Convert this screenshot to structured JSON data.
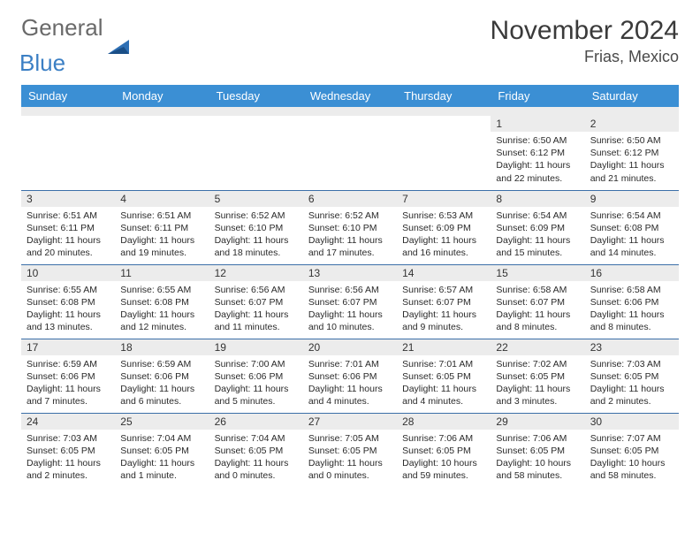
{
  "brand": {
    "text1": "General",
    "text2": "Blue"
  },
  "title": "November 2024",
  "subtitle": "Frias, Mexico",
  "colors": {
    "header_bg": "#3b8fd4",
    "header_text": "#ffffff",
    "row_border": "#3b6fa8",
    "daynum_bg": "#ececec",
    "text": "#2a2a2a",
    "brand_gray": "#6a6a6a",
    "brand_blue": "#3b7fc4"
  },
  "day_headers": [
    "Sunday",
    "Monday",
    "Tuesday",
    "Wednesday",
    "Thursday",
    "Friday",
    "Saturday"
  ],
  "weeks": [
    [
      null,
      null,
      null,
      null,
      null,
      {
        "n": "1",
        "sr": "6:50 AM",
        "ss": "6:12 PM",
        "dl": "11 hours and 22 minutes."
      },
      {
        "n": "2",
        "sr": "6:50 AM",
        "ss": "6:12 PM",
        "dl": "11 hours and 21 minutes."
      }
    ],
    [
      {
        "n": "3",
        "sr": "6:51 AM",
        "ss": "6:11 PM",
        "dl": "11 hours and 20 minutes."
      },
      {
        "n": "4",
        "sr": "6:51 AM",
        "ss": "6:11 PM",
        "dl": "11 hours and 19 minutes."
      },
      {
        "n": "5",
        "sr": "6:52 AM",
        "ss": "6:10 PM",
        "dl": "11 hours and 18 minutes."
      },
      {
        "n": "6",
        "sr": "6:52 AM",
        "ss": "6:10 PM",
        "dl": "11 hours and 17 minutes."
      },
      {
        "n": "7",
        "sr": "6:53 AM",
        "ss": "6:09 PM",
        "dl": "11 hours and 16 minutes."
      },
      {
        "n": "8",
        "sr": "6:54 AM",
        "ss": "6:09 PM",
        "dl": "11 hours and 15 minutes."
      },
      {
        "n": "9",
        "sr": "6:54 AM",
        "ss": "6:08 PM",
        "dl": "11 hours and 14 minutes."
      }
    ],
    [
      {
        "n": "10",
        "sr": "6:55 AM",
        "ss": "6:08 PM",
        "dl": "11 hours and 13 minutes."
      },
      {
        "n": "11",
        "sr": "6:55 AM",
        "ss": "6:08 PM",
        "dl": "11 hours and 12 minutes."
      },
      {
        "n": "12",
        "sr": "6:56 AM",
        "ss": "6:07 PM",
        "dl": "11 hours and 11 minutes."
      },
      {
        "n": "13",
        "sr": "6:56 AM",
        "ss": "6:07 PM",
        "dl": "11 hours and 10 minutes."
      },
      {
        "n": "14",
        "sr": "6:57 AM",
        "ss": "6:07 PM",
        "dl": "11 hours and 9 minutes."
      },
      {
        "n": "15",
        "sr": "6:58 AM",
        "ss": "6:07 PM",
        "dl": "11 hours and 8 minutes."
      },
      {
        "n": "16",
        "sr": "6:58 AM",
        "ss": "6:06 PM",
        "dl": "11 hours and 8 minutes."
      }
    ],
    [
      {
        "n": "17",
        "sr": "6:59 AM",
        "ss": "6:06 PM",
        "dl": "11 hours and 7 minutes."
      },
      {
        "n": "18",
        "sr": "6:59 AM",
        "ss": "6:06 PM",
        "dl": "11 hours and 6 minutes."
      },
      {
        "n": "19",
        "sr": "7:00 AM",
        "ss": "6:06 PM",
        "dl": "11 hours and 5 minutes."
      },
      {
        "n": "20",
        "sr": "7:01 AM",
        "ss": "6:06 PM",
        "dl": "11 hours and 4 minutes."
      },
      {
        "n": "21",
        "sr": "7:01 AM",
        "ss": "6:05 PM",
        "dl": "11 hours and 4 minutes."
      },
      {
        "n": "22",
        "sr": "7:02 AM",
        "ss": "6:05 PM",
        "dl": "11 hours and 3 minutes."
      },
      {
        "n": "23",
        "sr": "7:03 AM",
        "ss": "6:05 PM",
        "dl": "11 hours and 2 minutes."
      }
    ],
    [
      {
        "n": "24",
        "sr": "7:03 AM",
        "ss": "6:05 PM",
        "dl": "11 hours and 2 minutes."
      },
      {
        "n": "25",
        "sr": "7:04 AM",
        "ss": "6:05 PM",
        "dl": "11 hours and 1 minute."
      },
      {
        "n": "26",
        "sr": "7:04 AM",
        "ss": "6:05 PM",
        "dl": "11 hours and 0 minutes."
      },
      {
        "n": "27",
        "sr": "7:05 AM",
        "ss": "6:05 PM",
        "dl": "11 hours and 0 minutes."
      },
      {
        "n": "28",
        "sr": "7:06 AM",
        "ss": "6:05 PM",
        "dl": "10 hours and 59 minutes."
      },
      {
        "n": "29",
        "sr": "7:06 AM",
        "ss": "6:05 PM",
        "dl": "10 hours and 58 minutes."
      },
      {
        "n": "30",
        "sr": "7:07 AM",
        "ss": "6:05 PM",
        "dl": "10 hours and 58 minutes."
      }
    ]
  ],
  "labels": {
    "sunrise": "Sunrise:",
    "sunset": "Sunset:",
    "daylight": "Daylight:"
  }
}
